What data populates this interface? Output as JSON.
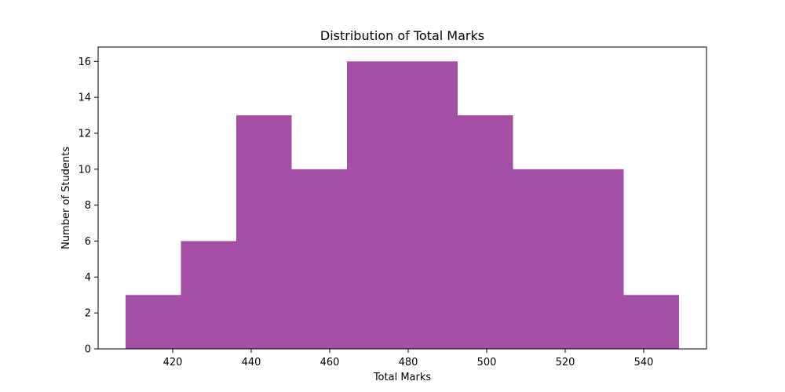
{
  "chart_data": {
    "type": "bar",
    "title": "Distribution of Total Marks",
    "xlabel": "Total Marks",
    "ylabel": "Number of Students",
    "bin_edges": [
      408.0,
      422.1,
      436.2,
      450.3,
      464.4,
      478.5,
      492.6,
      506.7,
      520.8,
      534.9,
      549.0
    ],
    "values": [
      3,
      6,
      13,
      10,
      16,
      16,
      13,
      10,
      10,
      3
    ],
    "xlim": [
      401,
      556
    ],
    "ylim": [
      0,
      16.8
    ],
    "xticks": [
      420,
      440,
      460,
      480,
      500,
      520,
      540
    ],
    "yticks": [
      0,
      2,
      4,
      6,
      8,
      10,
      12,
      14,
      16
    ],
    "bar_color": "#a54ea5",
    "grid": false,
    "legend": "none"
  }
}
